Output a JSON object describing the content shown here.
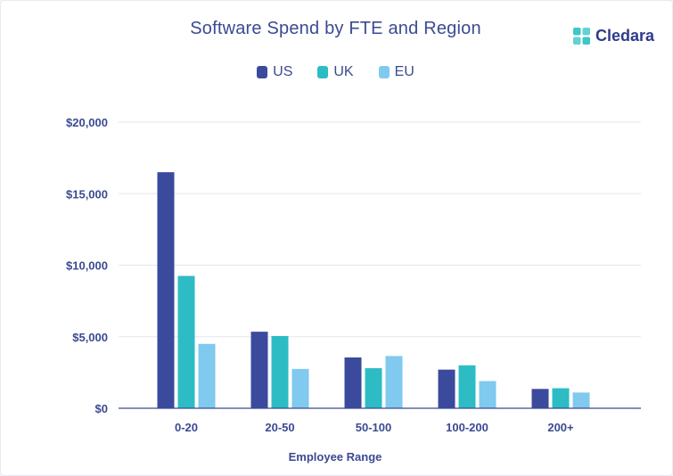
{
  "brand": {
    "name": "Cledara",
    "color": "#2e3a8a",
    "accent": "#3ec6c8"
  },
  "chart_data": {
    "type": "bar",
    "title": "Software Spend by FTE and Region",
    "xlabel": "Employee Range",
    "ylabel": "",
    "categories": [
      "0-20",
      "20-50",
      "50-100",
      "100-200",
      "200+"
    ],
    "series": [
      {
        "name": "US",
        "color": "#3b4a9c",
        "values": [
          16500,
          5350,
          3550,
          2700,
          1350
        ]
      },
      {
        "name": "UK",
        "color": "#2dbcc4",
        "values": [
          9250,
          5050,
          2800,
          3000,
          1400
        ]
      },
      {
        "name": "EU",
        "color": "#80c9ef",
        "values": [
          4500,
          2750,
          3650,
          1900,
          1100
        ]
      }
    ],
    "ylim": [
      0,
      20000
    ],
    "yticks": [
      0,
      5000,
      10000,
      15000,
      20000
    ],
    "ytick_labels": [
      "$0",
      "$5,000",
      "$10,000",
      "$15,000",
      "$20,000"
    ],
    "grid": true,
    "legend_position": "top-center"
  }
}
